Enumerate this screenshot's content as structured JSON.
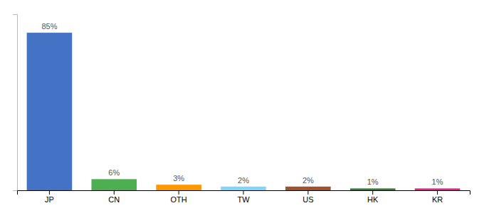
{
  "chart_data": {
    "type": "bar",
    "categories": [
      "JP",
      "CN",
      "OTH",
      "TW",
      "US",
      "HK",
      "KR"
    ],
    "values": [
      85,
      6,
      3,
      2,
      2,
      1,
      1
    ],
    "value_labels": [
      "85%",
      "6%",
      "3%",
      "2%",
      "2%",
      "1%",
      "1%"
    ],
    "colors": [
      "#4472c4",
      "#4caf50",
      "#ff9800",
      "#81d4fa",
      "#a0522d",
      "#2e7d32",
      "#e91e8c"
    ],
    "ylim": [
      0,
      95
    ],
    "data_labels": true,
    "tick_labels": "x"
  }
}
